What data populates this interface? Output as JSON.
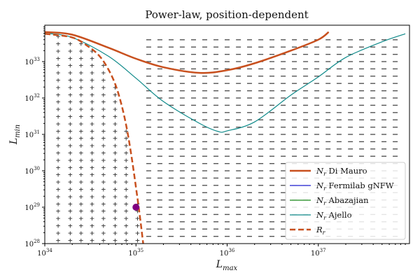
{
  "chart_data": {
    "type": "line",
    "title": "Power-law, position-dependent",
    "xlabel": "L",
    "xlabel_sub": "max",
    "ylabel": "L",
    "ylabel_sub": "min",
    "xscale": "log",
    "yscale": "log",
    "xlim": [
      1e+34,
      1e+38
    ],
    "ylim": [
      1e+28,
      1e+34
    ],
    "x_ticks": [
      {
        "value": 1e+34,
        "base": "10",
        "exp": "34"
      },
      {
        "value": 1e+35,
        "base": "10",
        "exp": "35"
      },
      {
        "value": 1e+36,
        "base": "10",
        "exp": "36"
      },
      {
        "value": 1e+37,
        "base": "10",
        "exp": "37"
      }
    ],
    "y_ticks": [
      {
        "value": 1e+28,
        "base": "10",
        "exp": "28"
      },
      {
        "value": 1e+29,
        "base": "10",
        "exp": "29"
      },
      {
        "value": 1e+30,
        "base": "10",
        "exp": "30"
      },
      {
        "value": 1e+31,
        "base": "10",
        "exp": "31"
      },
      {
        "value": 1e+32,
        "base": "10",
        "exp": "32"
      },
      {
        "value": 1e+33,
        "base": "10",
        "exp": "33"
      }
    ],
    "series": [
      {
        "name": "N",
        "name_sub": "r",
        "name_rest": " Di Mauro",
        "color": "#c8501e",
        "style": "solid",
        "width": 2.5,
        "points": [
          [
            1e+34,
            6.5e+33
          ],
          [
            2e+34,
            5.5e+33
          ],
          [
            5e+34,
            2.4e+33
          ],
          [
            1e+35,
            1.2e+33
          ],
          [
            2e+35,
            7e+32
          ],
          [
            5e+35,
            4.9e+32
          ],
          [
            1e+36,
            5.8e+32
          ],
          [
            2e+36,
            9e+32
          ],
          [
            5e+36,
            2e+33
          ],
          [
            1e+37,
            4e+33
          ],
          [
            1.3e+37,
            6.5e+33
          ]
        ]
      },
      {
        "name": "N",
        "name_sub": "r",
        "name_rest": " Fermilab gNFW",
        "color": "#1f1fd0",
        "style": "solid",
        "width": 1.2,
        "points": []
      },
      {
        "name": "N",
        "name_sub": "r",
        "name_rest": " Abazajian",
        "color": "#1a8a1a",
        "style": "solid",
        "width": 1.2,
        "points": []
      },
      {
        "name": "N",
        "name_sub": "r",
        "name_rest": " Ajello",
        "color": "#0f8a8a",
        "style": "solid",
        "width": 1.2,
        "points": [
          [
            1e+34,
            6e+33
          ],
          [
            2e+34,
            4.6e+33
          ],
          [
            5e+34,
            1.4e+33
          ],
          [
            1e+35,
            3.5e+32
          ],
          [
            2e+35,
            8e+31
          ],
          [
            5e+35,
            2e+31
          ],
          [
            8e+35,
            1.2e+31
          ],
          [
            1e+36,
            1.25e+31
          ],
          [
            2e+36,
            2.2e+31
          ],
          [
            5e+36,
            1.2e+32
          ],
          [
            1e+37,
            3.8e+32
          ],
          [
            2e+37,
            1.3e+33
          ],
          [
            5e+37,
            3.5e+33
          ],
          [
            9e+37,
            5.8e+33
          ]
        ]
      },
      {
        "name": "R",
        "name_sub": "r",
        "name_rest": "",
        "color": "#c8501e",
        "style": "dashed",
        "width": 2.5,
        "points": [
          [
            1e+34,
            5.8e+33
          ],
          [
            2e+34,
            4.6e+33
          ],
          [
            3e+34,
            2.6e+33
          ],
          [
            4e+34,
            1.4e+33
          ],
          [
            5e+34,
            6e+32
          ],
          [
            6e+34,
            2.2e+32
          ],
          [
            7e+34,
            6e+31
          ],
          [
            8e+34,
            1.3e+31
          ],
          [
            9e+34,
            2.2e+30
          ],
          [
            1e+35,
            3.5e+29
          ],
          [
            1.1e+35,
            6e+28
          ],
          [
            1.2e+35,
            1e+28
          ]
        ]
      }
    ],
    "marker": {
      "x": 1e+35,
      "y": 1e+29,
      "color": "#800080"
    },
    "plus_region": {
      "x_values": [
        1.4e+34,
        1.9e+34,
        2.5e+34,
        3.3e+34,
        4.4e+34,
        5.9e+34,
        7.8e+34,
        1.04e+35
      ],
      "symbol": "+",
      "color": "#333333"
    },
    "minus_region": {
      "x_values": [
        1.38e+35,
        1.83e+35,
        2.43e+35,
        3.22e+35,
        4.28e+35,
        5.68e+35,
        7.54e+35,
        1e+36,
        1.33e+36,
        1.76e+36,
        2.34e+36,
        3.1e+36,
        4.12e+36,
        5.46e+36,
        7.25e+36,
        9.62e+36,
        1.28e+37,
        1.69e+37,
        2.25e+37,
        2.98e+37,
        3.96e+37,
        5.25e+37,
        6.97e+37
      ],
      "color": "#555555"
    },
    "y_rows": [
      1.26e+28,
      1.58e+28,
      2e+28,
      2.51e+28,
      3.16e+28,
      3.98e+28,
      5.01e+28,
      6.31e+28,
      7.94e+28,
      1e+29,
      1.26e+29,
      1.58e+29,
      2e+29,
      2.51e+29,
      3.16e+29,
      3.98e+29,
      5.01e+29,
      6.31e+29,
      7.94e+29,
      1e+30,
      1.26e+30,
      1.58e+30,
      2e+30,
      2.51e+30,
      3.16e+30,
      3.98e+30,
      5.01e+30,
      6.31e+30,
      7.94e+30,
      1e+31,
      1.26e+31,
      1.58e+31,
      2e+31,
      2.51e+31,
      3.16e+31,
      3.98e+31,
      5.01e+31,
      6.31e+31,
      7.94e+31,
      1e+32,
      1.26e+32,
      1.58e+32,
      2e+32,
      2.51e+32,
      3.16e+32,
      3.98e+32,
      5.01e+32,
      6.31e+32,
      7.94e+32,
      1e+33,
      1.26e+33,
      1.58e+33,
      2e+33,
      2.51e+33,
      3.16e+33,
      3.98e+33,
      5.01e+33
    ],
    "legend_position": "lower-right",
    "grid": false
  }
}
